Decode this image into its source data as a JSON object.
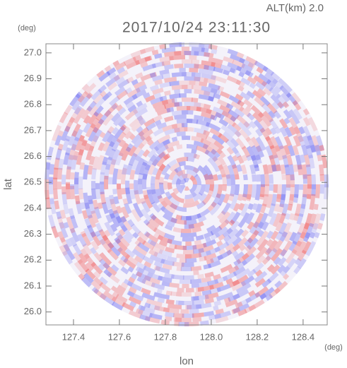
{
  "chart_data": {
    "type": "radar-ppi",
    "title": "2017/10/24 23:11:30",
    "subtitle": "ALT(km) 2.0",
    "x_label": "lon",
    "y_label": "lat",
    "x_unit": "(deg)",
    "y_unit": "(deg)",
    "xlim": [
      127.28,
      128.505
    ],
    "ylim": [
      25.95,
      27.035
    ],
    "xticks": [
      127.4,
      127.6,
      127.8,
      {
        "value": 128.0,
        "label": "128.0"
      },
      128.2,
      128.4
    ],
    "yticks": [
      {
        "value": 26.0,
        "label": "26.0"
      },
      26.1,
      26.2,
      26.3,
      26.4,
      26.5,
      26.6,
      26.7,
      26.8,
      26.9,
      {
        "value": 27.0,
        "label": "27.0"
      }
    ]
  }
}
